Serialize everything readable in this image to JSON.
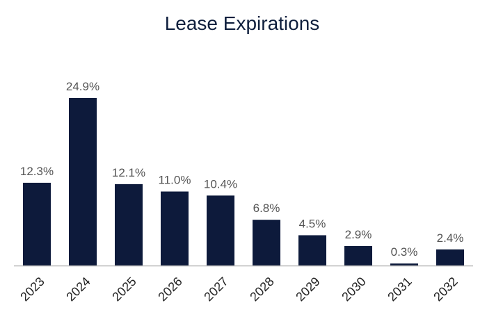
{
  "chart_data": {
    "type": "bar",
    "title": "Lease Expirations",
    "categories": [
      "2023",
      "2024",
      "2025",
      "2026",
      "2027",
      "2028",
      "2029",
      "2030",
      "2031",
      "2032"
    ],
    "values": [
      12.3,
      24.9,
      12.1,
      11.0,
      10.4,
      6.8,
      4.5,
      2.9,
      0.3,
      2.4
    ],
    "data_labels": [
      "12.3%",
      "24.9%",
      "12.1%",
      "11.0%",
      "10.4%",
      "6.8%",
      "4.5%",
      "2.9%",
      "0.3%",
      "2.4%"
    ],
    "xlabel": "",
    "ylabel": "",
    "ylim": [
      0,
      25
    ],
    "grid": false,
    "legend": "none",
    "colors": {
      "bar": "#0d1a3b",
      "axis": "#b8b8b8",
      "title": "#0f1f3d"
    }
  }
}
